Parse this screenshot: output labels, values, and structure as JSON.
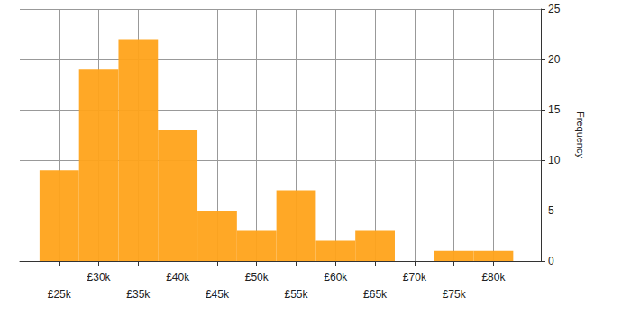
{
  "chart_data": {
    "type": "histogram",
    "bins": [
      22.5,
      27.5,
      32.5,
      37.5,
      42.5,
      47.5,
      52.5,
      57.5,
      62.5,
      67.5,
      72.5,
      77.5,
      82.5
    ],
    "values": [
      9,
      19,
      22,
      13,
      5,
      3,
      7,
      2,
      3,
      0,
      1,
      1
    ],
    "color": "#ffa31a",
    "xlim": [
      20,
      86
    ],
    "xticks": [
      {
        "value": 25,
        "label": "£25k"
      },
      {
        "value": 30,
        "label": "£30k"
      },
      {
        "value": 35,
        "label": "£35k"
      },
      {
        "value": 40,
        "label": "£40k"
      },
      {
        "value": 45,
        "label": "£45k"
      },
      {
        "value": 50,
        "label": "£50k"
      },
      {
        "value": 55,
        "label": "£55k"
      },
      {
        "value": 60,
        "label": "£60k"
      },
      {
        "value": 65,
        "label": "£65k"
      },
      {
        "value": 70,
        "label": "£70k"
      },
      {
        "value": 75,
        "label": "£75k"
      },
      {
        "value": 80,
        "label": "£80k"
      }
    ],
    "ylim": [
      0,
      25
    ],
    "yticks": [
      0,
      5,
      10,
      15,
      20,
      25
    ],
    "ylabel": "Frequency",
    "grid": true
  }
}
